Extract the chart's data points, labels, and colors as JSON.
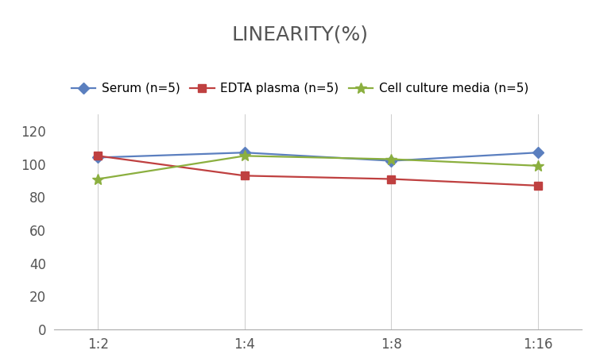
{
  "title": "LINEARITY(%)",
  "x_labels": [
    "1:2",
    "1:4",
    "1:8",
    "1:16"
  ],
  "x_positions": [
    0,
    1,
    2,
    3
  ],
  "series": [
    {
      "name": "Serum (n=5)",
      "values": [
        104,
        107,
        102,
        107
      ],
      "color": "#5B7FBF",
      "marker": "D",
      "markersize": 7,
      "linewidth": 1.6
    },
    {
      "name": "EDTA plasma (n=5)",
      "values": [
        105,
        93,
        91,
        87
      ],
      "color": "#BF4040",
      "marker": "s",
      "markersize": 7,
      "linewidth": 1.6
    },
    {
      "name": "Cell culture media (n=5)",
      "values": [
        91,
        105,
        103,
        99
      ],
      "color": "#8BAF3F",
      "marker": "*",
      "markersize": 10,
      "linewidth": 1.6
    }
  ],
  "ylim": [
    0,
    130
  ],
  "yticks": [
    0,
    20,
    40,
    60,
    80,
    100,
    120
  ],
  "background_color": "#ffffff",
  "title_fontsize": 18,
  "title_color": "#555555",
  "legend_fontsize": 11,
  "tick_fontsize": 12,
  "tick_color": "#555555"
}
